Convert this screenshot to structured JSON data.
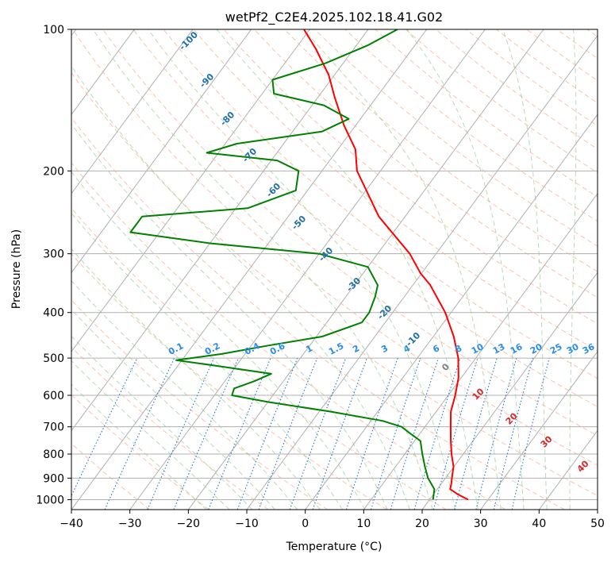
{
  "chart_data": {
    "type": "line",
    "title": "wetPf2_C2E4.2025.102.18.41.G02",
    "xlabel": "Temperature (°C)",
    "ylabel": "Pressure (hPa)",
    "xlim": [
      -40,
      50
    ],
    "ylim": [
      1050,
      100
    ],
    "y_scale": "log",
    "skew": "skew-T log-p",
    "grid": true,
    "x_ticks": [
      -40,
      -30,
      -20,
      -10,
      0,
      10,
      20,
      30,
      40,
      50
    ],
    "y_ticks": [
      100,
      200,
      300,
      400,
      500,
      600,
      700,
      800,
      900,
      1000
    ],
    "series": [
      {
        "color": "#ff0000",
        "points": [
          {
            "p": 1000,
            "t": 26.6
          },
          {
            "p": 975,
            "t": 24.2
          },
          {
            "p": 950,
            "t": 22.2
          },
          {
            "p": 925,
            "t": 21.7
          },
          {
            "p": 900,
            "t": 21.1
          },
          {
            "p": 850,
            "t": 19.9
          },
          {
            "p": 800,
            "t": 18.0
          },
          {
            "p": 750,
            "t": 16.2
          },
          {
            "p": 700,
            "t": 14.4
          },
          {
            "p": 650,
            "t": 12.5
          },
          {
            "p": 600,
            "t": 11.2
          },
          {
            "p": 550,
            "t": 9.5
          },
          {
            "p": 500,
            "t": 7.0
          },
          {
            "p": 450,
            "t": 3.5
          },
          {
            "p": 400,
            "t": -1.0
          },
          {
            "p": 350,
            "t": -7.0
          },
          {
            "p": 330,
            "t": -10.2
          },
          {
            "p": 300,
            "t": -14.5
          },
          {
            "p": 250,
            "t": -24.5
          },
          {
            "p": 200,
            "t": -34.0
          },
          {
            "p": 180,
            "t": -37.0
          },
          {
            "p": 160,
            "t": -42.0
          },
          {
            "p": 140,
            "t": -47.0
          },
          {
            "p": 125,
            "t": -51.0
          },
          {
            "p": 110,
            "t": -56.5
          },
          {
            "p": 100,
            "t": -61.0
          }
        ]
      },
      {
        "color": "#008000",
        "points": [
          {
            "p": 1000,
            "t": 20.6
          },
          {
            "p": 950,
            "t": 19.5
          },
          {
            "p": 900,
            "t": 17.0
          },
          {
            "p": 850,
            "t": 15.0
          },
          {
            "p": 800,
            "t": 13.0
          },
          {
            "p": 750,
            "t": 11.0
          },
          {
            "p": 720,
            "t": 8.0
          },
          {
            "p": 700,
            "t": 6.0
          },
          {
            "p": 680,
            "t": 2.0
          },
          {
            "p": 650,
            "t": -8.0
          },
          {
            "p": 620,
            "t": -20.0
          },
          {
            "p": 600,
            "t": -27.0
          },
          {
            "p": 580,
            "t": -27.5
          },
          {
            "p": 560,
            "t": -25.0
          },
          {
            "p": 540,
            "t": -23.0
          },
          {
            "p": 520,
            "t": -33.0
          },
          {
            "p": 505,
            "t": -41.0
          },
          {
            "p": 490,
            "t": -34.0
          },
          {
            "p": 470,
            "t": -27.0
          },
          {
            "p": 450,
            "t": -19.0
          },
          {
            "p": 420,
            "t": -14.0
          },
          {
            "p": 400,
            "t": -14.0
          },
          {
            "p": 370,
            "t": -15.0
          },
          {
            "p": 350,
            "t": -16.0
          },
          {
            "p": 320,
            "t": -20.0
          },
          {
            "p": 300,
            "t": -30.0
          },
          {
            "p": 285,
            "t": -50.0
          },
          {
            "p": 270,
            "t": -65.0
          },
          {
            "p": 250,
            "t": -65.0
          },
          {
            "p": 240,
            "t": -48.0
          },
          {
            "p": 220,
            "t": -42.0
          },
          {
            "p": 200,
            "t": -44.0
          },
          {
            "p": 190,
            "t": -49.0
          },
          {
            "p": 183,
            "t": -62.0
          },
          {
            "p": 175,
            "t": -58.0
          },
          {
            "p": 165,
            "t": -45.0
          },
          {
            "p": 155,
            "t": -42.0
          },
          {
            "p": 145,
            "t": -48.0
          },
          {
            "p": 137,
            "t": -58.0
          },
          {
            "p": 128,
            "t": -60.0
          },
          {
            "p": 118,
            "t": -53.0
          },
          {
            "p": 108,
            "t": -48.0
          },
          {
            "p": 100,
            "t": -45.0
          }
        ]
      }
    ],
    "dry_adiabats_label_values": [
      "-100",
      "-90",
      "-80",
      "-70",
      "-60",
      "-50",
      "-40",
      "-30",
      "-20",
      "-10"
    ],
    "mixing_ratio_labels": [
      "0.1",
      "0.2",
      "0.4",
      "0.6",
      "1",
      "1.5",
      "2",
      "3",
      "4",
      "6",
      "8",
      "10",
      "13",
      "16",
      "20",
      "25",
      "30",
      "36"
    ],
    "moist_adiabat_labels": [
      "0",
      "10",
      "20",
      "30",
      "40"
    ],
    "colors": {
      "temperature": "#ff0000",
      "dewpoint": "#008000",
      "isotherm_grid": "#b0b0b0",
      "dry_adiabat": "#f4a582",
      "moist_adiabat": "#8fc98f",
      "mixing_ratio": "#1f77d4",
      "dry_label": "#1f6fa8",
      "mixing_label": "#2a8ce6",
      "moist_label_zero": "#808080",
      "moist_label": "#d62728"
    }
  }
}
